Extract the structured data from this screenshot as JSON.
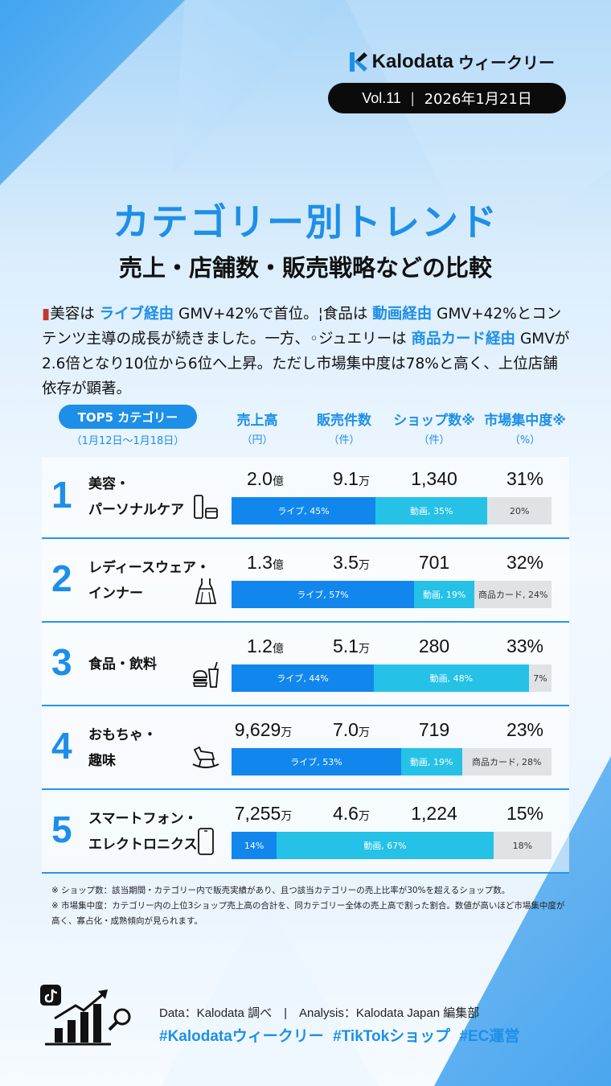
{
  "brand": {
    "name": "Kalodata",
    "suffix": "ウィークリー"
  },
  "issue": {
    "vol": "Vol.11",
    "separator": "|",
    "date": "2026年1月21日"
  },
  "title": "カテゴリー別トレンド",
  "subtitle": "売上・店舗数・販売戦略などの比較",
  "intro": {
    "p1": "美容は",
    "h1": "ライブ経由",
    "p2": "GMV+42%で首位。",
    "p3": "食品は",
    "h2": "動画経由",
    "p4": "GMV+42%とコンテンツ主導の成長が続きました。一方、",
    "p5": "ジュエリーは",
    "h3": "商品カード経由",
    "p6": "GMVが2.6倍となり10位から6位へ上昇。ただし市場集中度は78%と高く、上位店舗依存が顕著。"
  },
  "table_header": {
    "pill": "TOP5 カテゴリー",
    "period": "（1月12日〜1月18日）",
    "columns": [
      {
        "label": "売上高",
        "unit": "（円）"
      },
      {
        "label": "販売件数",
        "unit": "（件）"
      },
      {
        "label": "ショップ数※",
        "unit": "（件）"
      },
      {
        "label": "市場集中度※",
        "unit": "（%）"
      }
    ]
  },
  "rows": [
    {
      "rank": "1",
      "name1": "美容・",
      "name2": "パーソナルケア",
      "icon": "cosmetics-icon",
      "sales_num": "2.0",
      "sales_unit": "億",
      "count_num": "9.1",
      "count_unit": "万",
      "shops": "1,340",
      "concentration": "31%",
      "segments": [
        {
          "type": "live",
          "share": 45,
          "label": "ライブ, 45%"
        },
        {
          "type": "video",
          "share": 35,
          "label": "動画, 35%"
        },
        {
          "type": "card",
          "share": 20,
          "label": "20%"
        }
      ]
    },
    {
      "rank": "2",
      "name1": "レディースウェア・",
      "name2": "インナー",
      "icon": "dress-icon",
      "sales_num": "1.3",
      "sales_unit": "億",
      "count_num": "3.5",
      "count_unit": "万",
      "shops": "701",
      "concentration": "32%",
      "segments": [
        {
          "type": "live",
          "share": 57,
          "label": "ライブ, 57%"
        },
        {
          "type": "video",
          "share": 19,
          "label": "動画, 19%"
        },
        {
          "type": "card",
          "share": 24,
          "label": "商品カード, 24%"
        }
      ]
    },
    {
      "rank": "3",
      "name1": "食品・飲料",
      "name2": "",
      "icon": "food-drink-icon",
      "sales_num": "1.2",
      "sales_unit": "億",
      "count_num": "5.1",
      "count_unit": "万",
      "shops": "280",
      "concentration": "33%",
      "segments": [
        {
          "type": "live",
          "share": 44,
          "label": "ライブ, 44%"
        },
        {
          "type": "video",
          "share": 48,
          "label": "動画, 48%"
        },
        {
          "type": "card",
          "share": 7,
          "label": "7%"
        }
      ]
    },
    {
      "rank": "4",
      "name1": "おもちゃ・",
      "name2": "趣味",
      "icon": "rocking-horse-icon",
      "sales_num": "9,629",
      "sales_unit": "万",
      "count_num": "7.0",
      "count_unit": "万",
      "shops": "719",
      "concentration": "23%",
      "segments": [
        {
          "type": "live",
          "share": 53,
          "label": "ライブ, 53%"
        },
        {
          "type": "video",
          "share": 19,
          "label": "動画, 19%"
        },
        {
          "type": "card",
          "share": 28,
          "label": "商品カード, 28%"
        }
      ]
    },
    {
      "rank": "5",
      "name1": "スマートフォン・",
      "name2": "エレクトロニクス",
      "icon": "smartphone-icon",
      "sales_num": "7,255",
      "sales_unit": "万",
      "count_num": "4.6",
      "count_unit": "万",
      "shops": "1,224",
      "concentration": "15%",
      "segments": [
        {
          "type": "live",
          "share": 14,
          "label": "14%"
        },
        {
          "type": "video",
          "share": 67,
          "label": "動画, 67%"
        },
        {
          "type": "card",
          "share": 18,
          "label": "18%"
        }
      ]
    }
  ],
  "notes": [
    "※ ショップ数：該当期間・カテゴリー内で販売実績があり、且つ該当カテゴリーの売上比率が30%を超えるショップ数。",
    "※ 市場集中度：カテゴリー内の上位3ショップ売上高の合計を、同カテゴリー全体の売上高で割った割合。数値が高いほど市場集中度が高く、寡占化・成熟傾向が見られます。"
  ],
  "footer": {
    "meta": "Data：Kalodata 調べ　|　Analysis：Kalodata Japan 編集部",
    "hashtags": "#Kalodataウィークリー #TikTokショップ #EC運営"
  },
  "colors": {
    "accent": "#1d8fe8",
    "live": "#1187ee",
    "video": "#25c1e6",
    "card": "#dfe3e6"
  }
}
